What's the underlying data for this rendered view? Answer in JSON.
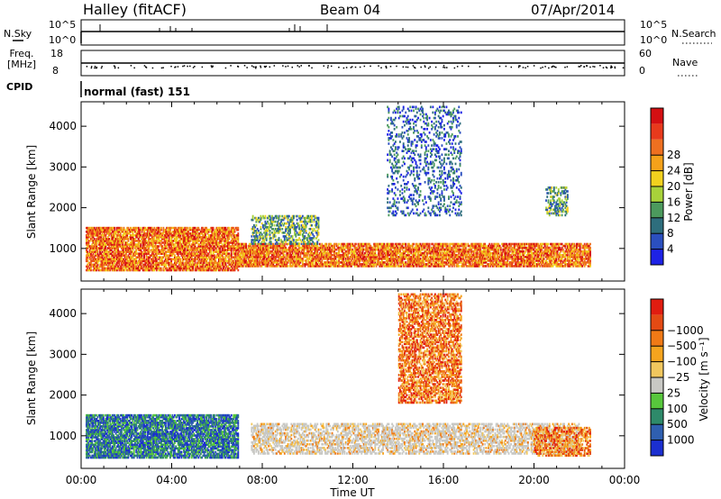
{
  "header": {
    "station": "Halley (fitACF)",
    "beam": "Beam 04",
    "date": "07/Apr/2014"
  },
  "top_panels": {
    "nsky_label": "N.Sky",
    "nsearch_label": "N.Search",
    "nsky_ticks": [
      "10^5",
      "10^0"
    ],
    "nsearch_ticks": [
      "10^5",
      "10^0"
    ],
    "freq_label_1": "Freq.",
    "freq_label_2": "[MHz]",
    "freq_ticks": [
      "18",
      "8"
    ],
    "nave_label": "Nave",
    "nave_ticks": [
      "60",
      "0"
    ],
    "cpid_label": "CPID",
    "cpid_value": "normal (fast) 151"
  },
  "chart_data": [
    {
      "type": "heatmap",
      "ylabel": "Slant Range [km]",
      "xlabel": "Time UT",
      "x_ticks": [
        "00:00",
        "04:00",
        "08:00",
        "12:00",
        "16:00",
        "20:00",
        "00:00"
      ],
      "x_range_hours": [
        0,
        24
      ],
      "y_ticks": [
        1000,
        2000,
        3000,
        4000
      ],
      "ylim": [
        200,
        4600
      ],
      "colorbar": {
        "label": "Power [dB]",
        "ticks": [
          "4",
          "8",
          "12",
          "16",
          "20",
          "24",
          "28"
        ],
        "colors": [
          "#1d22e6",
          "#2b4fbf",
          "#2e6e7d",
          "#4c9a5d",
          "#a8d23a",
          "#f2d11e",
          "#f5a11a",
          "#ee7020",
          "#e83a1c",
          "#d40f12"
        ]
      },
      "regions": [
        {
          "t0": 0.2,
          "t1": 6.9,
          "r0": 450,
          "r1": 1500,
          "level": "high"
        },
        {
          "t0": 6.9,
          "t1": 22.5,
          "r0": 550,
          "r1": 1100,
          "level": "high"
        },
        {
          "t0": 7.5,
          "t1": 10.5,
          "r0": 1100,
          "r1": 1800,
          "level": "medium"
        },
        {
          "t0": 13.5,
          "t1": 16.8,
          "r0": 1800,
          "r1": 4500,
          "level": "low"
        },
        {
          "t0": 20.5,
          "t1": 21.5,
          "r0": 1800,
          "r1": 2500,
          "level": "medium"
        }
      ]
    },
    {
      "type": "heatmap",
      "ylabel": "Slant Range [km]",
      "xlabel": "Time UT",
      "x_ticks": [
        "00:00",
        "04:00",
        "08:00",
        "12:00",
        "16:00",
        "20:00",
        "00:00"
      ],
      "x_range_hours": [
        0,
        24
      ],
      "y_ticks": [
        1000,
        2000,
        3000,
        4000
      ],
      "ylim": [
        200,
        4600
      ],
      "colorbar": {
        "label": "Velocity [m s⁻¹]",
        "ticks": [
          "1000",
          "500",
          "100",
          "25",
          "−25",
          "−100",
          "−500",
          "−1000"
        ],
        "colors": [
          "#1b2fd0",
          "#2f5fb0",
          "#2e8a6a",
          "#57c73c",
          "#c8c8c4",
          "#f1c75e",
          "#f6a41e",
          "#f07a16",
          "#e44a14",
          "#e11c10"
        ]
      },
      "regions": [
        {
          "t0": 0.2,
          "t1": 6.9,
          "r0": 450,
          "r1": 1500,
          "level": "positive"
        },
        {
          "t0": 7.5,
          "t1": 22.0,
          "r0": 550,
          "r1": 1300,
          "level": "near-zero"
        },
        {
          "t0": 14.0,
          "t1": 16.8,
          "r0": 1800,
          "r1": 4500,
          "level": "negative"
        },
        {
          "t0": 20.0,
          "t1": 22.5,
          "r0": 500,
          "r1": 1200,
          "level": "negative"
        }
      ]
    }
  ]
}
